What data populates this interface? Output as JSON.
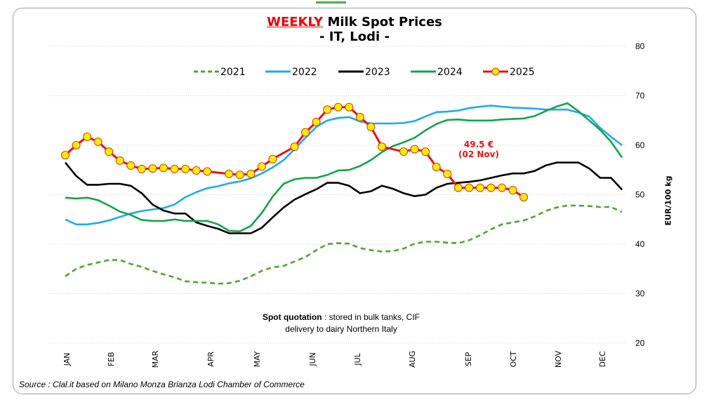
{
  "chart_data": {
    "type": "line",
    "title_highlight": "WEEKLY",
    "title_rest": " Milk Spot Prices",
    "subtitle": "- IT, Lodi -",
    "ylabel": "EUR/100 kg",
    "ylim": [
      20,
      80
    ],
    "yticks": [
      20,
      30,
      40,
      50,
      60,
      70,
      80
    ],
    "x_unit": "week",
    "xticks": [
      "JAN",
      "FEB",
      "MAR",
      "APR",
      "MAY",
      "JUN",
      "JUL",
      "AUG",
      "SEP",
      "OCT",
      "NOV",
      "DEC"
    ],
    "grid": true,
    "legend_position": "top",
    "series": [
      {
        "name": "2021",
        "color": "#4ea72e",
        "style": "dashed",
        "values": [
          33.5,
          35,
          35.8,
          36.3,
          36.8,
          36.8,
          36,
          35.4,
          34.6,
          33.9,
          33.3,
          32.5,
          32.3,
          32.2,
          32,
          32.1,
          32.6,
          33.5,
          34.6,
          35.3,
          35.6,
          36.5,
          37.4,
          38.8,
          40,
          40.2,
          40.1,
          39.2,
          38.8,
          38.5,
          38.6,
          39.1,
          40.1,
          40.5,
          40.5,
          40.3,
          40.2,
          40.8,
          41.8,
          43,
          44,
          44.4,
          44.8,
          45.6,
          46.7,
          47.4,
          47.8,
          47.8,
          47.7,
          47.5,
          47.5,
          46.5
        ]
      },
      {
        "name": "2022",
        "color": "#1eaaf1",
        "style": "solid",
        "values": [
          45,
          44,
          44,
          44.3,
          44.8,
          45.5,
          46.2,
          46.7,
          47,
          47.3,
          48,
          49.5,
          50.5,
          51.3,
          51.7,
          52.3,
          52.7,
          53.3,
          54.3,
          55.5,
          57,
          59.2,
          61.5,
          63.7,
          65,
          65.5,
          65.7,
          64.8,
          64.4,
          64.4,
          64.4,
          64.5,
          64.9,
          65.8,
          66.7,
          66.8,
          67,
          67.5,
          67.8,
          68,
          67.8,
          67.6,
          67.5,
          67.4,
          67.2,
          67.2,
          67.2,
          66.6,
          65.8,
          63.5,
          61.7,
          60
        ]
      },
      {
        "name": "2023",
        "color": "#000000",
        "style": "solid",
        "values": [
          56.5,
          53.8,
          52,
          52,
          52.2,
          52.2,
          51.8,
          50.3,
          48,
          46.8,
          46.2,
          46.2,
          44.4,
          43.7,
          43.1,
          42.2,
          42.2,
          42.2,
          43.3,
          45.4,
          47.4,
          49,
          50.1,
          51.1,
          52.4,
          52.4,
          51.8,
          50.3,
          50.7,
          51.8,
          51.2,
          50.3,
          49.7,
          50,
          51.4,
          52.2,
          52.4,
          52.6,
          52.9,
          53.4,
          53.9,
          54.3,
          54.3,
          54.8,
          55.9,
          56.5,
          56.5,
          56.5,
          55.3,
          53.4,
          53.4,
          51
        ]
      },
      {
        "name": "2024",
        "color": "#12a54a",
        "style": "solid",
        "values": [
          49.4,
          49.2,
          49.4,
          48.9,
          47.8,
          46.6,
          45.9,
          44.9,
          44.7,
          44.7,
          45,
          44.7,
          44.7,
          44.7,
          44,
          42.7,
          42.6,
          43.7,
          46.3,
          49.6,
          52.2,
          53.1,
          53.4,
          53.4,
          54,
          54.9,
          55,
          55.8,
          57,
          58.6,
          59.8,
          60.6,
          61.5,
          63,
          64.3,
          65.1,
          65.2,
          65,
          65,
          65,
          65.2,
          65.3,
          65.4,
          65.9,
          66.9,
          67.8,
          68.5,
          66.9,
          65,
          63.1,
          60.7,
          57.5
        ]
      },
      {
        "name": "2025",
        "color": "#ee1111",
        "marker_color": "#ffee00",
        "style": "markers",
        "points": [
          [
            1,
            58
          ],
          [
            2,
            60
          ],
          [
            3,
            61.7
          ],
          [
            4,
            60.7
          ],
          [
            5,
            58.7
          ],
          [
            6,
            56.9
          ],
          [
            7,
            55.9
          ],
          [
            8,
            55.2
          ],
          [
            9,
            55.3
          ],
          [
            10,
            55.4
          ],
          [
            11,
            55.2
          ],
          [
            12,
            55.2
          ],
          [
            13,
            54.9
          ],
          [
            14,
            54.7
          ],
          [
            16,
            54.2
          ],
          [
            17,
            54
          ],
          [
            18,
            54.2
          ],
          [
            19,
            55.7
          ],
          [
            20,
            57.2
          ],
          [
            22,
            59.7
          ],
          [
            23,
            62.6
          ],
          [
            24,
            64.7
          ],
          [
            25,
            67.2
          ],
          [
            26,
            67.7
          ],
          [
            27,
            67.7
          ],
          [
            28,
            65.7
          ],
          [
            29,
            63.7
          ],
          [
            30,
            59.7
          ],
          [
            32,
            58.7
          ],
          [
            33,
            59.2
          ],
          [
            34,
            58.7
          ],
          [
            35,
            55.6
          ],
          [
            36,
            54.2
          ],
          [
            37,
            51.4
          ],
          [
            38,
            51.4
          ],
          [
            39,
            51.4
          ],
          [
            40,
            51.4
          ],
          [
            41,
            51.4
          ],
          [
            42,
            50.9
          ],
          [
            43,
            49.5
          ]
        ]
      }
    ],
    "annotation": {
      "line1": "49.5 €",
      "line2": "(02 Nov)",
      "color": "#ee1111"
    }
  },
  "note": {
    "bold": "Spot quotation",
    "rest": " : stored in bulk tanks, CIF",
    "line2": "delivery to dairy Northern Italy"
  },
  "source": "Source : Clal.it based on Milano Monza Brianza Lodi Chamber of Commerce"
}
